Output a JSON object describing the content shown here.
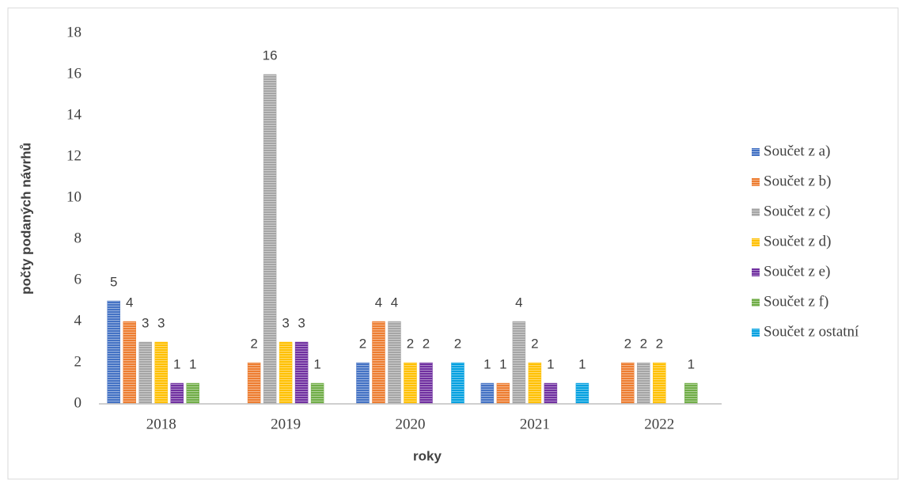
{
  "chart_data": {
    "type": "bar",
    "x_label": "roky",
    "y_label": "počty podaných návrhů",
    "categories": [
      "2018",
      "2019",
      "2020",
      "2021",
      "2022"
    ],
    "series": [
      {
        "name": "Součet z a)",
        "color": "#4472c4",
        "values": [
          5,
          null,
          2,
          1,
          null
        ]
      },
      {
        "name": "Součet z b)",
        "color": "#ed7d31",
        "values": [
          4,
          2,
          4,
          1,
          2
        ]
      },
      {
        "name": "Součet z c)",
        "color": "#a5a5a5",
        "values": [
          3,
          16,
          4,
          4,
          2
        ]
      },
      {
        "name": "Součet z d)",
        "color": "#ffc000",
        "values": [
          3,
          3,
          2,
          2,
          2
        ]
      },
      {
        "name": "Součet z e)",
        "color": "#7030a0",
        "values": [
          1,
          3,
          2,
          1,
          null
        ]
      },
      {
        "name": "Součet z f)",
        "color": "#70ad47",
        "values": [
          1,
          1,
          null,
          null,
          1
        ]
      },
      {
        "name": "Součet z ostatní",
        "color": "#00a0e0",
        "values": [
          null,
          null,
          2,
          1,
          null
        ]
      }
    ],
    "ylim": [
      0,
      18
    ],
    "yticks": [
      0,
      2,
      4,
      6,
      8,
      10,
      12,
      14,
      16,
      18
    ],
    "grid": false,
    "legend": "right"
  }
}
